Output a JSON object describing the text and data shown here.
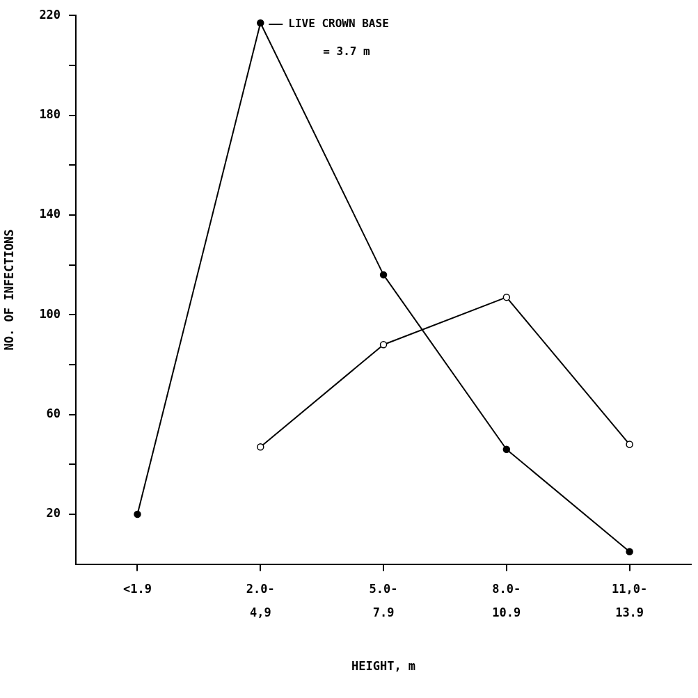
{
  "chart_data": {
    "type": "line",
    "xlabel": "HEIGHT, m",
    "ylabel": "NO. OF INFECTIONS",
    "categories": [
      "<1.9",
      "2.0-\n4,9",
      "5.0-\n7.9",
      "8.0-\n10.9",
      "11,0-\n13.9"
    ],
    "series": [
      {
        "color": "#000000",
        "marker": "circle",
        "values": [
          20,
          217,
          116,
          46,
          5
        ]
      },
      {
        "color": "#000000",
        "marker": "circle-open",
        "values": [
          null,
          47,
          88,
          107,
          48
        ]
      }
    ],
    "ylim": [
      0,
      220
    ],
    "yticks": [
      20,
      {
        "value": 40,
        "label": null
      },
      60,
      {
        "value": 80,
        "label": null
      },
      100,
      {
        "value": 120,
        "label": null
      },
      140,
      {
        "value": 160,
        "label": null
      },
      180,
      {
        "value": 200,
        "label": null
      },
      220
    ],
    "grid": false,
    "legend": false,
    "line_style": "solid",
    "annotations": [
      {
        "text": "LIVE CROWN BASE",
        "x": "2.0-\n4,9",
        "y": 217
      },
      "= 3.7 m"
    ]
  }
}
